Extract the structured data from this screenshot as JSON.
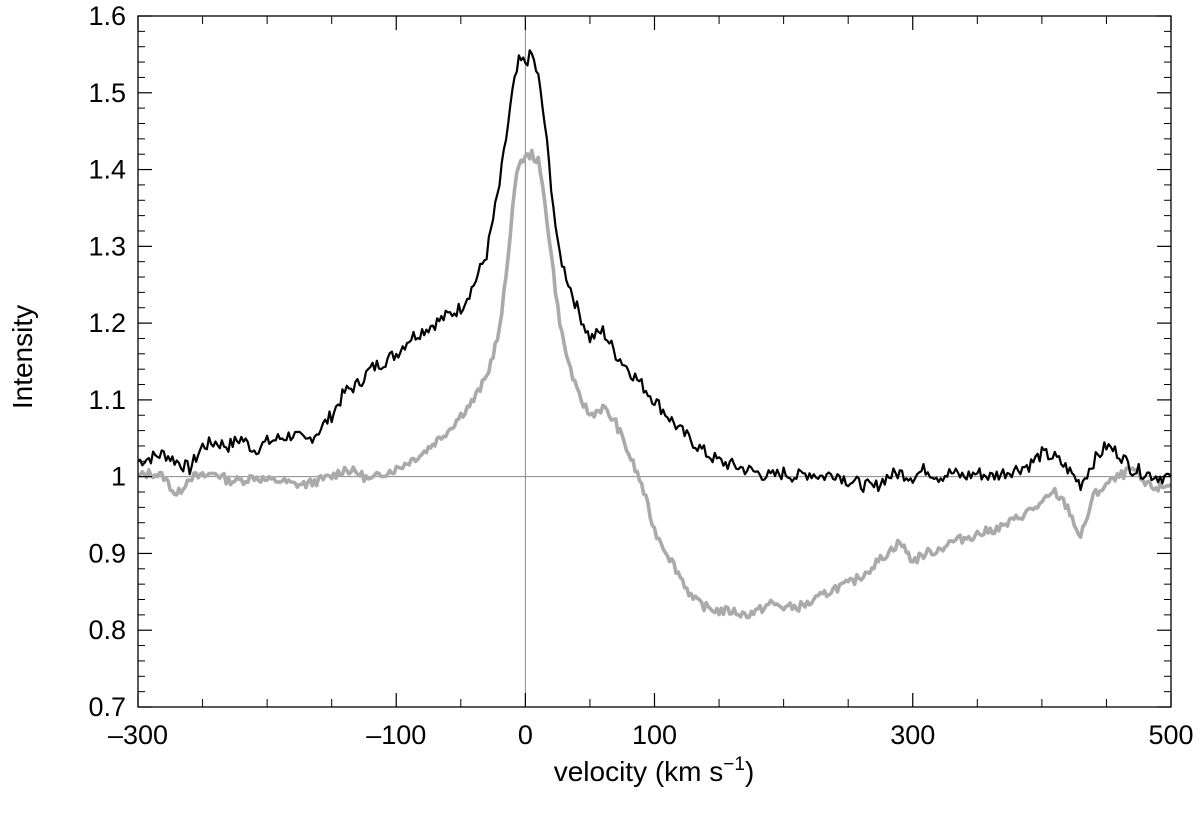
{
  "chart_data": {
    "type": "line",
    "title": "",
    "xlabel": {
      "main": "velocity (km s",
      "sup": "−1",
      "tail": ")"
    },
    "ylabel": "Intensity",
    "xlim": [
      -300,
      500
    ],
    "ylim": [
      0.7,
      1.6
    ],
    "x_ticks": [
      -300,
      -100,
      0,
      100,
      300,
      500
    ],
    "x_tick_labels": [
      "–300",
      "–100",
      "0",
      "100",
      "300",
      "500"
    ],
    "x_minor_ticks": [
      -250,
      -200,
      -150,
      -50,
      50,
      150,
      200,
      250,
      350,
      400,
      450
    ],
    "y_ticks": [
      0.7,
      0.8,
      0.9,
      1.0,
      1.1,
      1.2,
      1.3,
      1.4,
      1.5,
      1.6
    ],
    "y_tick_labels": [
      "0.7",
      "0.8",
      "0.9",
      "1",
      "1.1",
      "1.2",
      "1.3",
      "1.4",
      "1.5",
      "1.6"
    ],
    "y_minor_step": 0.02,
    "reference_lines": {
      "x": 0,
      "y": 1.0
    },
    "grid": false,
    "series": [
      {
        "color": "#000000",
        "x": [
          -300,
          -290,
          -280,
          -270,
          -260,
          -250,
          -240,
          -230,
          -220,
          -210,
          -200,
          -190,
          -180,
          -170,
          -160,
          -150,
          -140,
          -130,
          -120,
          -110,
          -100,
          -90,
          -80,
          -70,
          -60,
          -50,
          -40,
          -30,
          -20,
          -15,
          -10,
          -5,
          0,
          5,
          10,
          15,
          20,
          25,
          30,
          40,
          50,
          60,
          70,
          80,
          90,
          100,
          110,
          120,
          130,
          140,
          150,
          160,
          170,
          180,
          190,
          200,
          210,
          220,
          230,
          240,
          250,
          260,
          270,
          280,
          290,
          300,
          310,
          320,
          330,
          340,
          350,
          360,
          370,
          380,
          390,
          400,
          410,
          420,
          430,
          440,
          450,
          460,
          470,
          480,
          490,
          500
        ],
        "y": [
          1.02,
          1.025,
          1.03,
          1.02,
          1.01,
          1.04,
          1.045,
          1.04,
          1.05,
          1.035,
          1.045,
          1.05,
          1.055,
          1.045,
          1.06,
          1.08,
          1.11,
          1.12,
          1.14,
          1.15,
          1.16,
          1.18,
          1.19,
          1.2,
          1.21,
          1.22,
          1.25,
          1.29,
          1.38,
          1.44,
          1.5,
          1.54,
          1.54,
          1.55,
          1.52,
          1.46,
          1.38,
          1.3,
          1.27,
          1.22,
          1.18,
          1.19,
          1.16,
          1.14,
          1.12,
          1.1,
          1.08,
          1.06,
          1.045,
          1.03,
          1.02,
          1.015,
          1.01,
          1.005,
          1.0,
          1.005,
          1.0,
          1.005,
          1.0,
          1.005,
          0.995,
          0.99,
          0.985,
          1.0,
          1.005,
          1.0,
          1.01,
          1.0,
          1.005,
          1.0,
          1.005,
          1.0,
          1.005,
          1.01,
          1.015,
          1.03,
          1.025,
          1.01,
          0.99,
          1.02,
          1.04,
          1.03,
          1.01,
          1.005,
          1.0,
          1.0
        ]
      },
      {
        "color": "#aaaaaa",
        "x": [
          -300,
          -290,
          -280,
          -270,
          -260,
          -250,
          -240,
          -230,
          -220,
          -210,
          -200,
          -190,
          -180,
          -170,
          -160,
          -150,
          -140,
          -130,
          -120,
          -110,
          -100,
          -90,
          -80,
          -70,
          -60,
          -50,
          -40,
          -30,
          -20,
          -15,
          -10,
          -5,
          0,
          5,
          10,
          15,
          20,
          25,
          30,
          40,
          50,
          60,
          70,
          80,
          90,
          100,
          110,
          120,
          130,
          140,
          150,
          160,
          170,
          180,
          190,
          200,
          210,
          220,
          230,
          240,
          250,
          260,
          270,
          280,
          290,
          300,
          310,
          320,
          330,
          340,
          350,
          360,
          370,
          380,
          390,
          400,
          410,
          420,
          430,
          440,
          450,
          460,
          470,
          480,
          490,
          500
        ],
        "y": [
          1.0,
          1.005,
          1.0,
          0.975,
          1.0,
          1.0,
          1.005,
          0.995,
          0.995,
          1.0,
          0.995,
          0.995,
          0.99,
          0.99,
          0.995,
          1.0,
          1.01,
          1.005,
          0.995,
          1.005,
          1.01,
          1.02,
          1.03,
          1.045,
          1.06,
          1.08,
          1.1,
          1.13,
          1.19,
          1.26,
          1.35,
          1.41,
          1.415,
          1.42,
          1.41,
          1.36,
          1.29,
          1.22,
          1.17,
          1.11,
          1.08,
          1.09,
          1.07,
          1.03,
          0.99,
          0.93,
          0.9,
          0.87,
          0.84,
          0.83,
          0.825,
          0.825,
          0.82,
          0.825,
          0.835,
          0.83,
          0.83,
          0.835,
          0.845,
          0.855,
          0.86,
          0.87,
          0.885,
          0.9,
          0.915,
          0.89,
          0.9,
          0.905,
          0.915,
          0.92,
          0.925,
          0.93,
          0.935,
          0.945,
          0.955,
          0.965,
          0.98,
          0.96,
          0.92,
          0.975,
          0.99,
          1.0,
          1.01,
          0.99,
          0.985,
          0.99
        ]
      }
    ]
  }
}
